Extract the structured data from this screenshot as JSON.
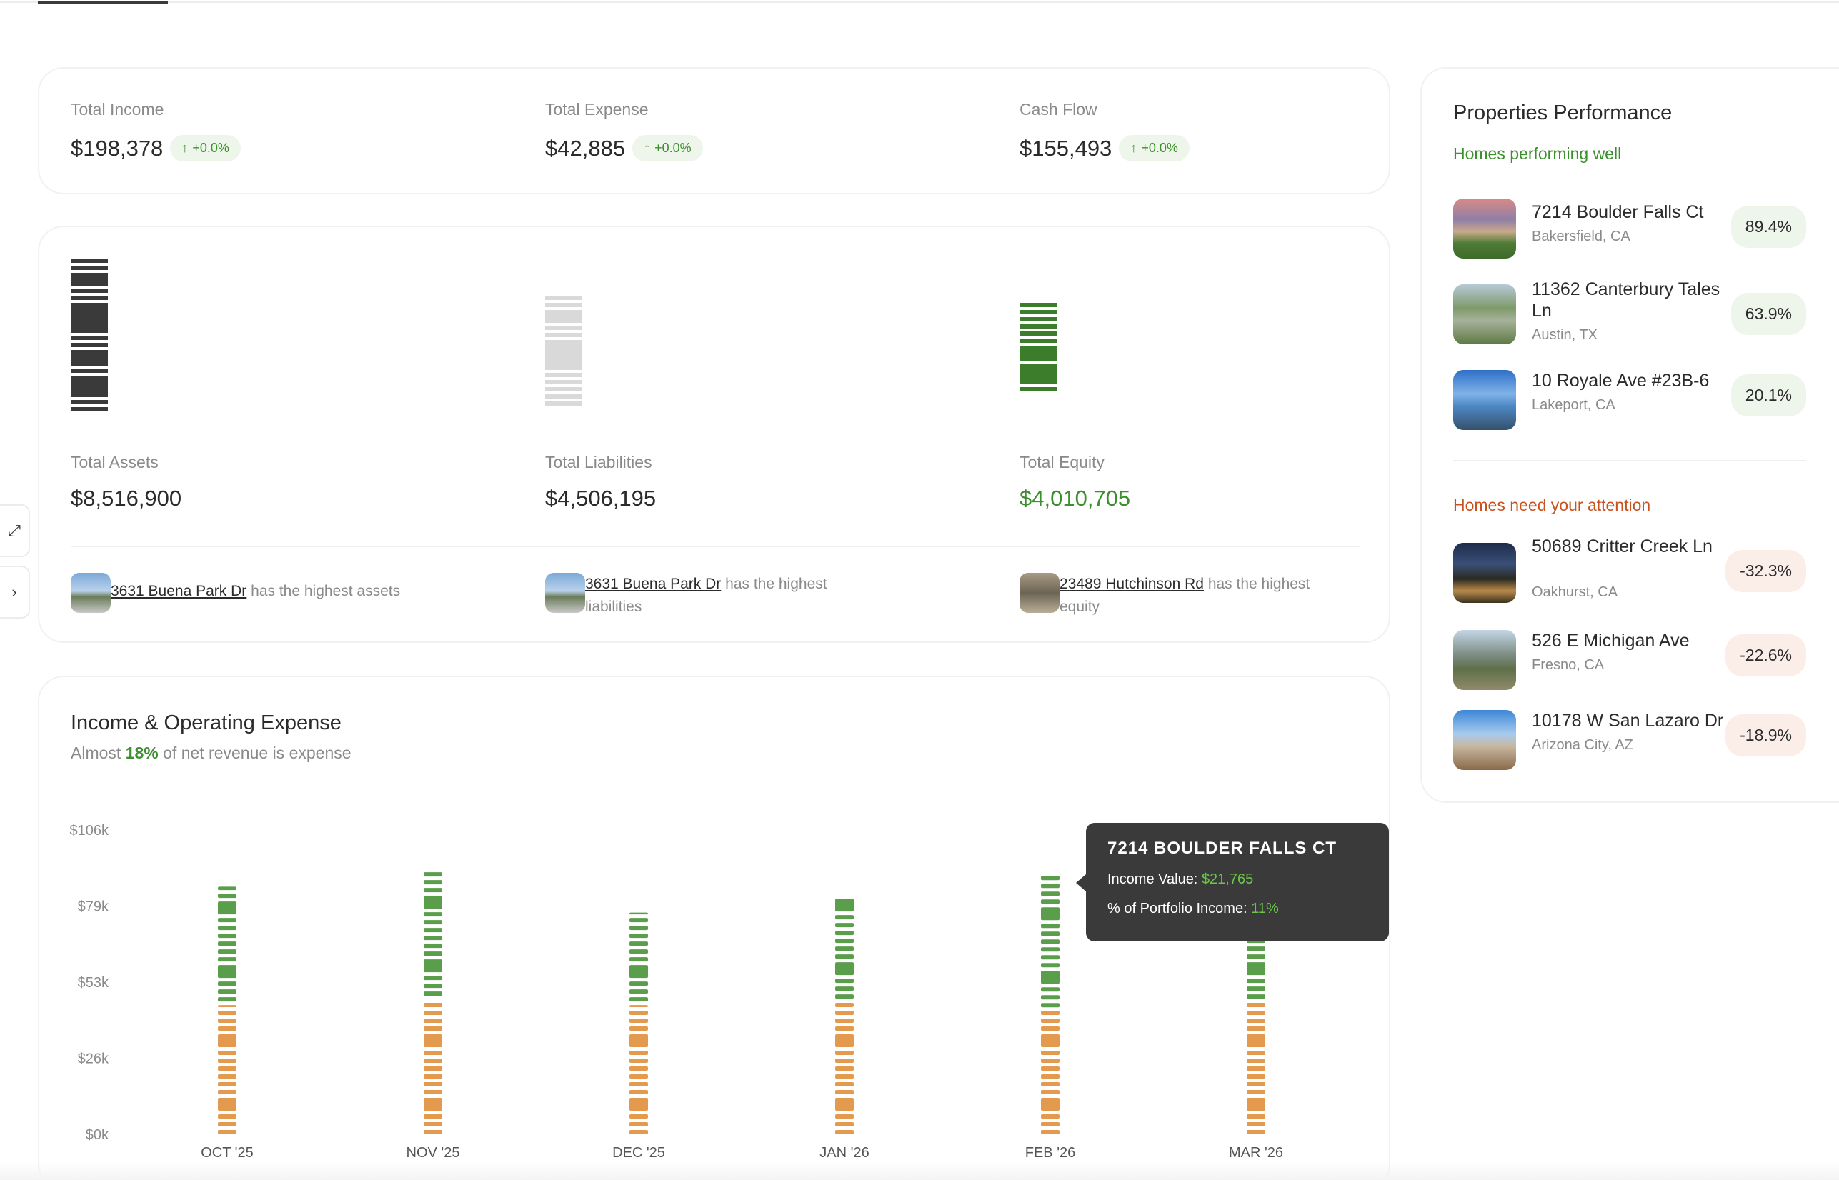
{
  "summary": {
    "income": {
      "label": "Total Income",
      "value": "$198,378",
      "change": "+0.0%"
    },
    "expense": {
      "label": "Total Expense",
      "value": "$42,885",
      "change": "+0.0%"
    },
    "cashflow": {
      "label": "Cash Flow",
      "value": "$155,493",
      "change": "+0.0%"
    }
  },
  "balance": {
    "assets": {
      "label": "Total Assets",
      "value": "$8,516,900",
      "color": "#3a3a3a"
    },
    "liabilities": {
      "label": "Total Liabilities",
      "value": "$4,506,195",
      "color": "#d9d9d9"
    },
    "equity": {
      "label": "Total Equity",
      "value": "$4,010,705",
      "color": "#3b7d2b"
    },
    "highlights": [
      {
        "link": "3631 Buena Park Dr",
        "text": "has the highest assets"
      },
      {
        "link": "3631 Buena Park Dr",
        "text": "has the highest liabilities"
      },
      {
        "link": "23489 Hutchinson Rd",
        "text": "has the highest equity"
      }
    ]
  },
  "income_chart": {
    "title": "Income & Operating Expense",
    "subtitle_pre": "Almost",
    "subtitle_pct": "18%",
    "subtitle_post": "of net revenue is expense",
    "tooltip": {
      "title": "7214 BOULDER FALLS CT",
      "income_label": "Income Value:",
      "income_value": "$21,765",
      "pct_label": "% of Portfolio Income:",
      "pct_value": "11%"
    }
  },
  "chart_data": {
    "type": "bar",
    "categories": [
      "OCT '25",
      "NOV '25",
      "DEC '25",
      "JAN '26",
      "FEB '26",
      "MAR '26"
    ],
    "yticks": [
      "$0k",
      "$26k",
      "$53k",
      "$79k",
      "$106k"
    ],
    "ylim": [
      0,
      106
    ],
    "series": [
      {
        "color": "#5a9e4b",
        "values": [
          40,
          44,
          31,
          35,
          46,
          33
        ]
      },
      {
        "color": "#e39a4f",
        "values": [
          45,
          47,
          45,
          46,
          43,
          46
        ]
      }
    ]
  },
  "properties": {
    "title": "Properties Performance",
    "good_label": "Homes performing well",
    "bad_label": "Homes need your attention",
    "good_color": "#3c8f2e",
    "bad_color": "#c8531e",
    "good": [
      {
        "name": "7214 Boulder Falls Ct",
        "loc": "Bakersfield, CA",
        "pct": "89.4%"
      },
      {
        "name": "11362 Canterbury Tales Ln",
        "loc": "Austin, TX",
        "pct": "63.9%"
      },
      {
        "name": "10 Royale Ave #23B-6",
        "loc": "Lakeport, CA",
        "pct": "20.1%"
      }
    ],
    "bad": [
      {
        "name": "50689 Critter Creek Ln",
        "loc": "Oakhurst, CA",
        "pct": "-32.3%"
      },
      {
        "name": "526 E Michigan Ave",
        "loc": "Fresno, CA",
        "pct": "-22.6%"
      },
      {
        "name": "10178 W San Lazaro Dr",
        "loc": "Arizona City, AZ",
        "pct": "-18.9%"
      }
    ]
  }
}
